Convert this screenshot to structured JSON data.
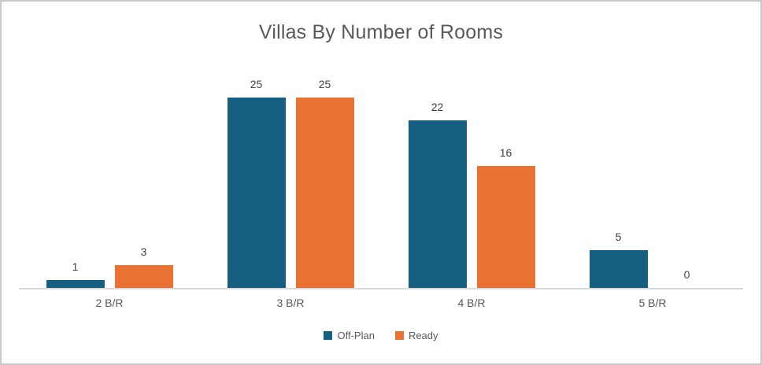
{
  "window": {
    "border_color": "#c9c9c9",
    "background_color": "#ffffff"
  },
  "chart_data": {
    "type": "bar",
    "title": "Villas By Number of Rooms",
    "categories": [
      "2 B/R",
      "3 B/R",
      "4 B/R",
      "5 B/R"
    ],
    "series": [
      {
        "name": "Off-Plan",
        "color": "#156082",
        "values": [
          1,
          25,
          22,
          5
        ]
      },
      {
        "name": "Ready",
        "color": "#E97132",
        "values": [
          3,
          25,
          16,
          0
        ]
      }
    ],
    "ylim": [
      0,
      25
    ],
    "grid": false,
    "y_axis_visible": false,
    "data_labels": true,
    "legend_position": "bottom",
    "axis_line_color": "#d9d9d9",
    "title_color": "#595959",
    "data_label_color": "#404040",
    "category_label_color": "#595959"
  }
}
